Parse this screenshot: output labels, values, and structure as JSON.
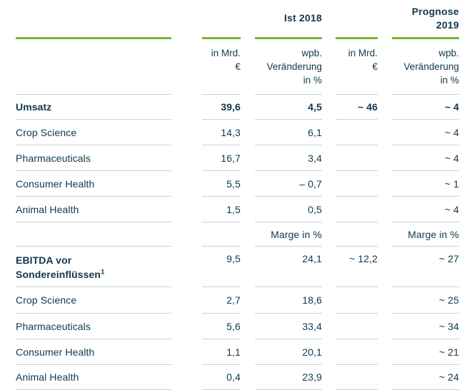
{
  "colors": {
    "text": "#10384f",
    "accent_green": "#76b72a",
    "divider": "#ccd1d5"
  },
  "header": {
    "group_actual": "Ist 2018",
    "group_forecast_line1": "Prognose",
    "group_forecast_line2": "2019",
    "unit_col_line1": "in Mrd.",
    "unit_col_line2": "€",
    "change_col_line1": "wpb.",
    "change_col_line2": "Veränderung",
    "change_col_line3": "in %"
  },
  "table": {
    "rows": [
      {
        "label": "Umsatz",
        "actual_mrd": "39,6",
        "actual_change": "4,5",
        "forecast_mrd": "~ 46",
        "forecast_change": "~ 4"
      },
      {
        "label": "Crop Science",
        "actual_mrd": "14,3",
        "actual_change": "6,1",
        "forecast_mrd": "",
        "forecast_change": "~ 4"
      },
      {
        "label": "Pharmaceuticals",
        "actual_mrd": "16,7",
        "actual_change": "3,4",
        "forecast_mrd": "",
        "forecast_change": "~ 4"
      },
      {
        "label": "Consumer Health",
        "actual_mrd": "5,5",
        "actual_change": "– 0,7",
        "forecast_mrd": "",
        "forecast_change": "~ 1"
      },
      {
        "label": "Animal Health",
        "actual_mrd": "1,5",
        "actual_change": "0,5",
        "forecast_mrd": "",
        "forecast_change": "~ 4"
      },
      {
        "label": "",
        "actual_mrd": "",
        "actual_change": "Marge in %",
        "forecast_mrd": "",
        "forecast_change": "Marge in %"
      },
      {
        "label_line1": "EBITDA vor",
        "label_line2": "Sondereinflüssen",
        "footnote": "1",
        "actual_mrd": "9,5",
        "actual_change": "24,1",
        "forecast_mrd": "~ 12,2",
        "forecast_change": "~ 27"
      },
      {
        "label": "Crop Science",
        "actual_mrd": "2,7",
        "actual_change": "18,6",
        "forecast_mrd": "",
        "forecast_change": "~ 25"
      },
      {
        "label": "Pharmaceuticals",
        "actual_mrd": "5,6",
        "actual_change": "33,4",
        "forecast_mrd": "",
        "forecast_change": "~ 34"
      },
      {
        "label": "Consumer Health",
        "actual_mrd": "1,1",
        "actual_change": "20,1",
        "forecast_mrd": "",
        "forecast_change": "~ 21"
      },
      {
        "label": "Animal Health",
        "actual_mrd": "0,4",
        "actual_change": "23,9",
        "forecast_mrd": "",
        "forecast_change": "~ 24"
      }
    ]
  }
}
